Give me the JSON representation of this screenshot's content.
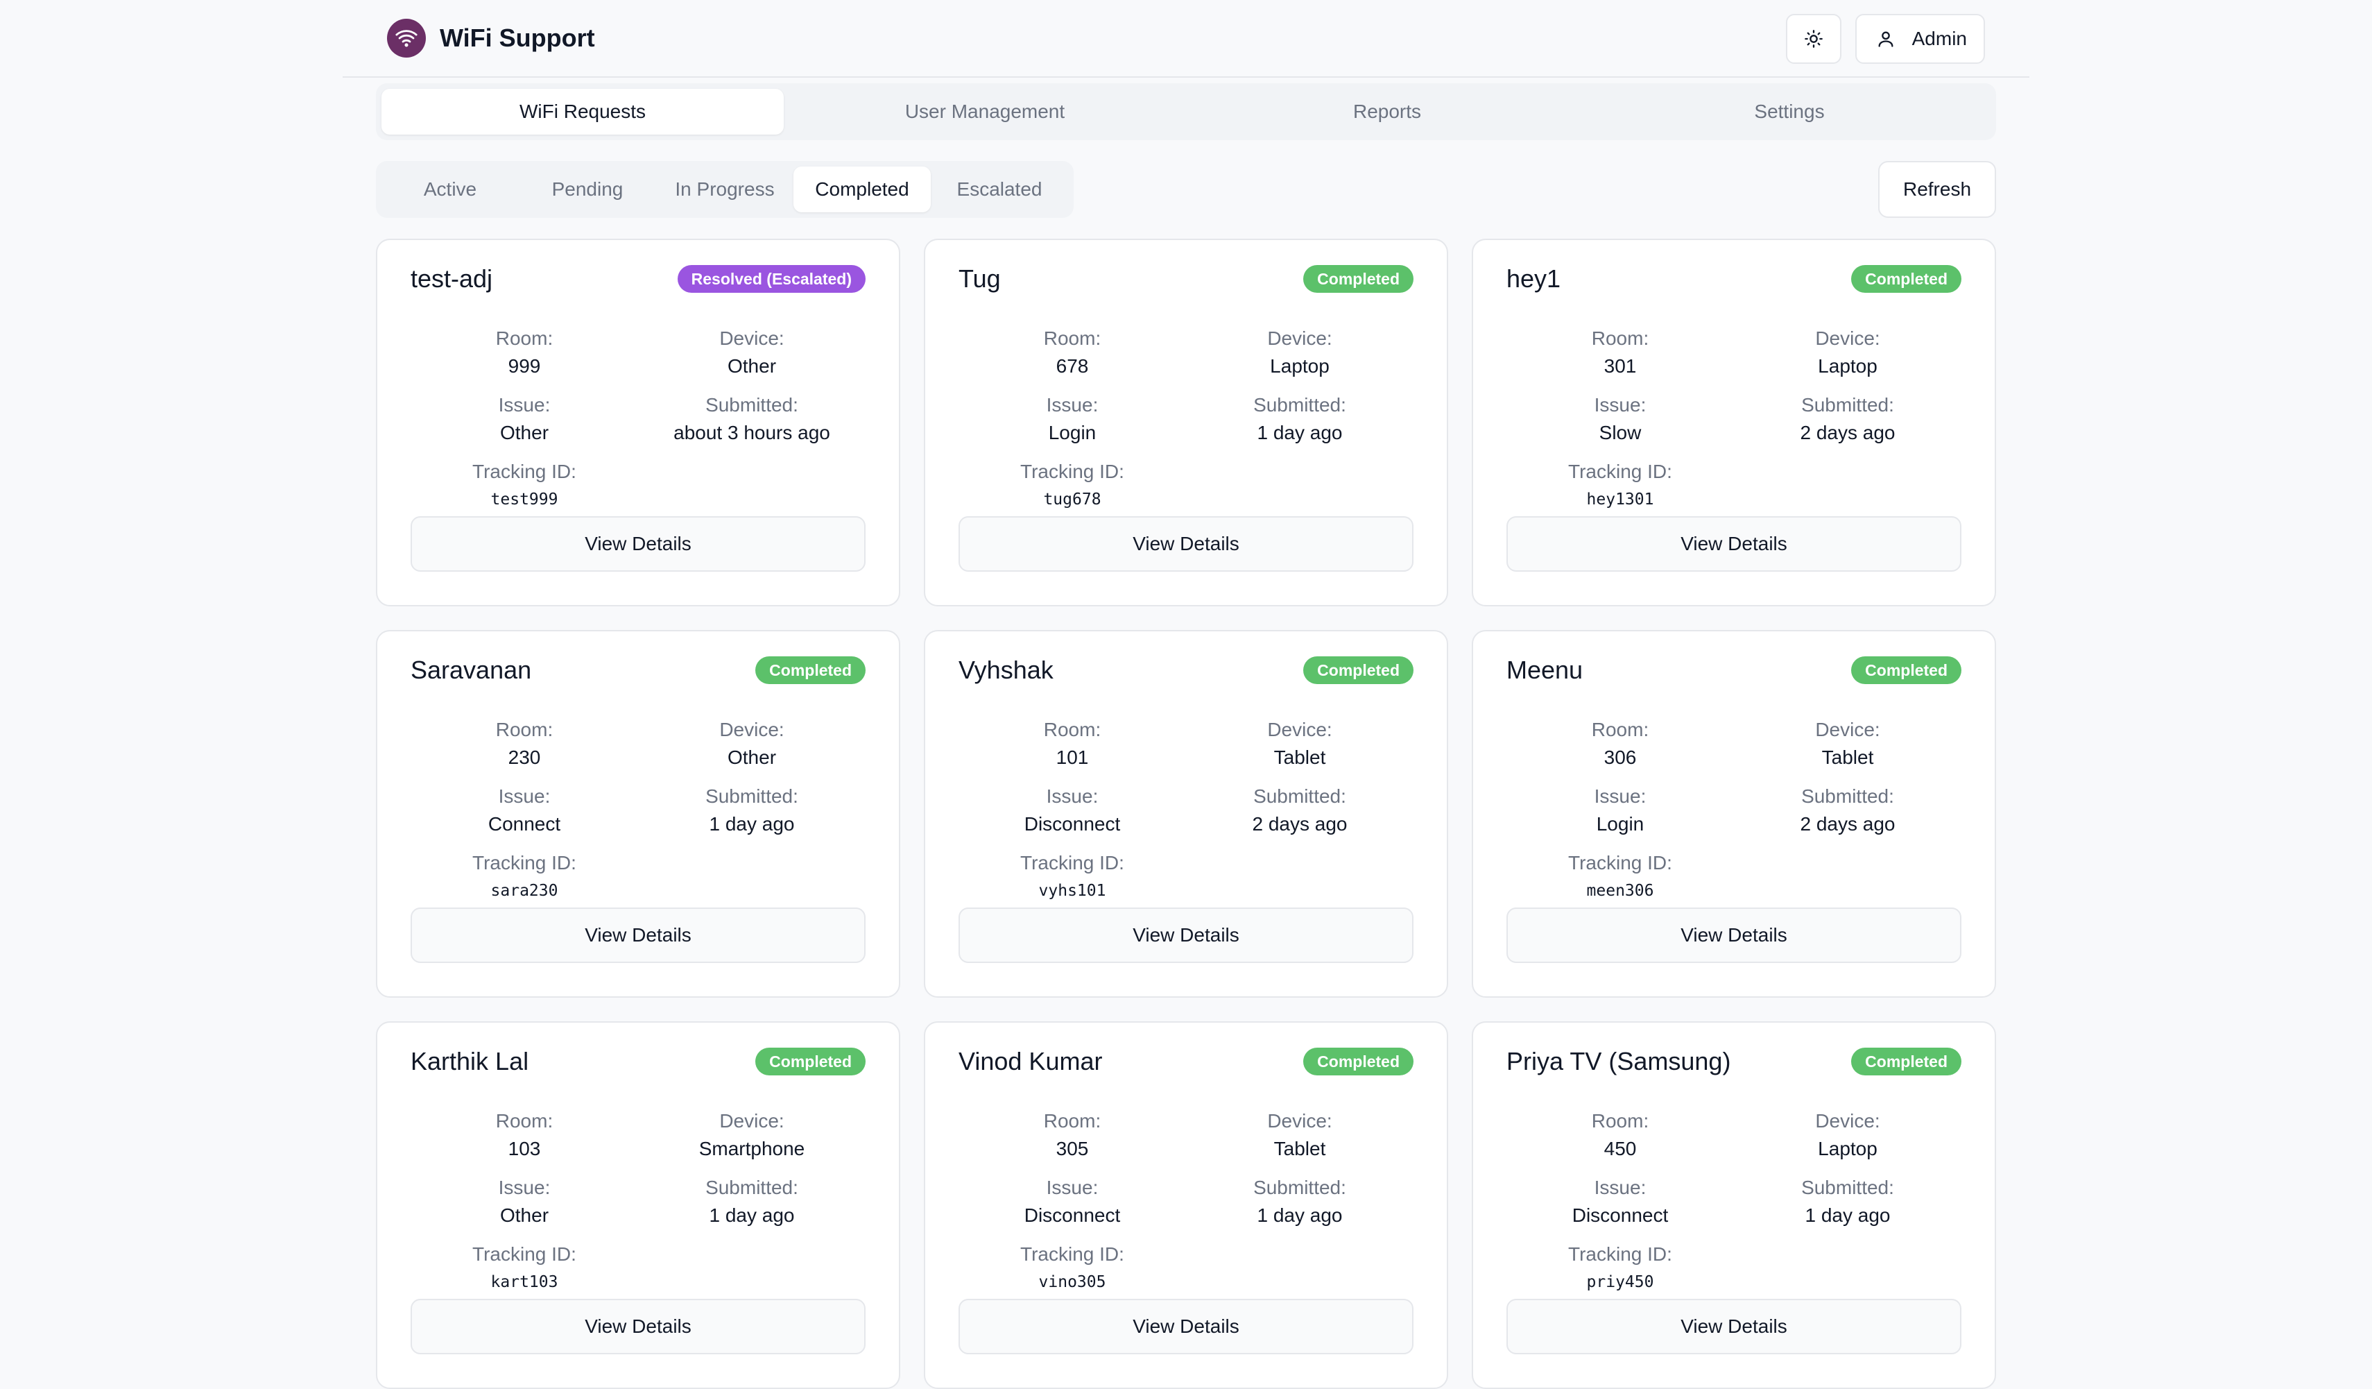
{
  "header": {
    "title": "WiFi Support",
    "admin_label": "Admin",
    "logo_icon": "wifi-icon",
    "theme_icon": "sun-icon",
    "brand_color": "#6b2f66"
  },
  "main_tabs": [
    {
      "label": "WiFi Requests",
      "active": true
    },
    {
      "label": "User Management",
      "active": false
    },
    {
      "label": "Reports",
      "active": false
    },
    {
      "label": "Settings",
      "active": false
    }
  ],
  "status_tabs": [
    {
      "label": "Active",
      "active": false
    },
    {
      "label": "Pending",
      "active": false
    },
    {
      "label": "In Progress",
      "active": false
    },
    {
      "label": "Completed",
      "active": true
    },
    {
      "label": "Escalated",
      "active": false
    }
  ],
  "refresh_label": "Refresh",
  "field_labels": {
    "room": "Room:",
    "device": "Device:",
    "issue": "Issue:",
    "submitted": "Submitted:",
    "tracking": "Tracking ID:"
  },
  "view_details_label": "View Details",
  "colors": {
    "completed": "#5cc16a",
    "escalated": "#9a55e0"
  },
  "requests": [
    {
      "name": "test-adj",
      "status": "Resolved (Escalated)",
      "status_type": "escalated",
      "room": "999",
      "device": "Other",
      "issue": "Other",
      "submitted": "about 3 hours ago",
      "tracking_id": "test999"
    },
    {
      "name": "Tug",
      "status": "Completed",
      "status_type": "completed",
      "room": "678",
      "device": "Laptop",
      "issue": "Login",
      "submitted": "1 day ago",
      "tracking_id": "tug678"
    },
    {
      "name": "hey1",
      "status": "Completed",
      "status_type": "completed",
      "room": "301",
      "device": "Laptop",
      "issue": "Slow",
      "submitted": "2 days ago",
      "tracking_id": "hey1301"
    },
    {
      "name": "Saravanan",
      "status": "Completed",
      "status_type": "completed",
      "room": "230",
      "device": "Other",
      "issue": "Connect",
      "submitted": "1 day ago",
      "tracking_id": "sara230"
    },
    {
      "name": "Vyhshak",
      "status": "Completed",
      "status_type": "completed",
      "room": "101",
      "device": "Tablet",
      "issue": "Disconnect",
      "submitted": "2 days ago",
      "tracking_id": "vyhs101"
    },
    {
      "name": "Meenu",
      "status": "Completed",
      "status_type": "completed",
      "room": "306",
      "device": "Tablet",
      "issue": "Login",
      "submitted": "2 days ago",
      "tracking_id": "meen306"
    },
    {
      "name": "Karthik Lal",
      "status": "Completed",
      "status_type": "completed",
      "room": "103",
      "device": "Smartphone",
      "issue": "Other",
      "submitted": "1 day ago",
      "tracking_id": "kart103"
    },
    {
      "name": "Vinod Kumar",
      "status": "Completed",
      "status_type": "completed",
      "room": "305",
      "device": "Tablet",
      "issue": "Disconnect",
      "submitted": "1 day ago",
      "tracking_id": "vino305"
    },
    {
      "name": "Priya TV (Samsung)",
      "status": "Completed",
      "status_type": "completed",
      "room": "450",
      "device": "Laptop",
      "issue": "Disconnect",
      "submitted": "1 day ago",
      "tracking_id": "priy450"
    }
  ]
}
